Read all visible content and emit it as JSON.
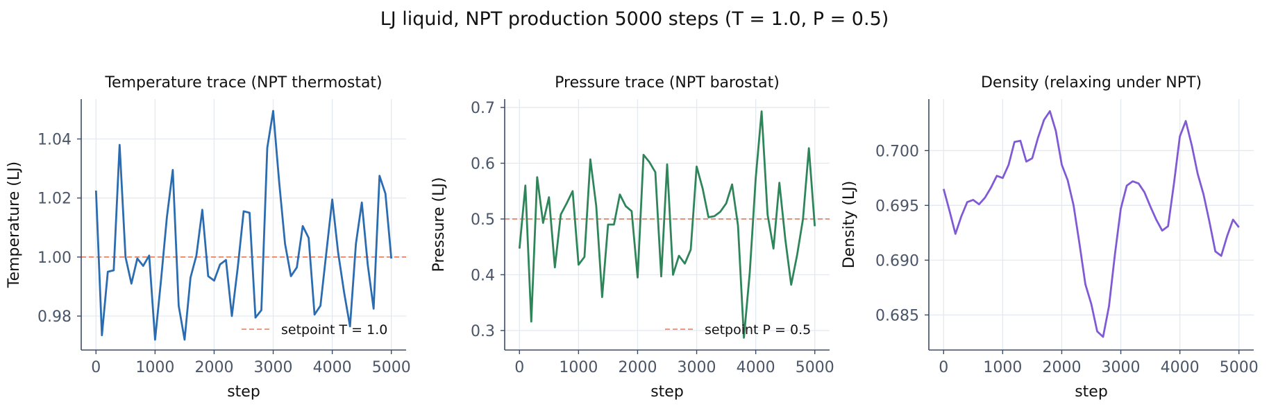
{
  "figure_title": "LJ liquid, NPT production 5000 steps  (T = 1.0, P = 0.5)",
  "colors": {
    "temperature": "#2b6cb0",
    "pressure": "#2f855a",
    "density": "#805ad5",
    "setpoint": "#e07b5a"
  },
  "chart_data": [
    {
      "type": "line",
      "title": "Temperature trace (NPT thermostat)",
      "xlabel": "step",
      "ylabel": "Temperature  (LJ)",
      "xlim": [
        -250,
        5250
      ],
      "ylim": [
        0.9685,
        1.0535
      ],
      "xticks": [
        0,
        1000,
        2000,
        3000,
        4000,
        5000
      ],
      "yticks": [
        0.98,
        1.0,
        1.02,
        1.04
      ],
      "ytick_labels": [
        "0.98",
        "1.00",
        "1.02",
        "1.04"
      ],
      "grid": true,
      "legend_position": "lower right",
      "series": [
        {
          "x": [
            0,
            100,
            200,
            300,
            400,
            500,
            600,
            700,
            800,
            900,
            1000,
            1100,
            1200,
            1300,
            1400,
            1500,
            1600,
            1700,
            1800,
            1900,
            2000,
            2100,
            2200,
            2300,
            2400,
            2500,
            2600,
            2700,
            2800,
            2900,
            3000,
            3100,
            3200,
            3300,
            3400,
            3500,
            3600,
            3700,
            3800,
            3900,
            4000,
            4100,
            4200,
            4300,
            4400,
            4500,
            4600,
            4700,
            4800,
            4900,
            5000
          ],
          "values": [
            1.0225,
            0.9735,
            0.995,
            0.9955,
            1.038,
            1.0,
            0.991,
            0.9995,
            0.997,
            1.0005,
            0.972,
            0.992,
            1.0135,
            1.0295,
            0.9835,
            0.972,
            0.993,
            1.0005,
            1.016,
            0.9935,
            0.992,
            0.9975,
            0.999,
            0.98,
            0.9965,
            1.0155,
            1.015,
            0.9795,
            0.982,
            1.037,
            1.0495,
            1.0255,
            1.0045,
            0.9935,
            0.9965,
            1.0105,
            1.0065,
            0.9805,
            0.9835,
            1.0015,
            1.0195,
            1.0015,
            0.988,
            0.9765,
            1.0045,
            1.0185,
            0.9975,
            0.9825,
            1.0275,
            1.0215,
            0.9995
          ]
        }
      ],
      "hline": {
        "y": 1.0,
        "label": "setpoint T = 1.0"
      }
    },
    {
      "type": "line",
      "title": "Pressure trace (NPT barostat)",
      "xlabel": "step",
      "ylabel": "Pressure  (LJ)",
      "xlim": [
        -250,
        5250
      ],
      "ylim": [
        0.265,
        0.715
      ],
      "xticks": [
        0,
        1000,
        2000,
        3000,
        4000,
        5000
      ],
      "yticks": [
        0.3,
        0.4,
        0.5,
        0.6,
        0.7
      ],
      "ytick_labels": [
        "0.3",
        "0.4",
        "0.5",
        "0.6",
        "0.7"
      ],
      "grid": true,
      "legend_position": "lower right",
      "series": [
        {
          "x": [
            0,
            100,
            200,
            300,
            400,
            500,
            600,
            700,
            800,
            900,
            1000,
            1100,
            1200,
            1300,
            1400,
            1500,
            1600,
            1700,
            1800,
            1900,
            2000,
            2100,
            2200,
            2300,
            2400,
            2500,
            2600,
            2700,
            2800,
            2900,
            3000,
            3100,
            3200,
            3300,
            3400,
            3500,
            3600,
            3700,
            3800,
            3900,
            4000,
            4100,
            4200,
            4300,
            4400,
            4500,
            4600,
            4700,
            4800,
            4900,
            5000
          ],
          "values": [
            0.447,
            0.56,
            0.316,
            0.575,
            0.493,
            0.539,
            0.413,
            0.508,
            0.528,
            0.55,
            0.418,
            0.432,
            0.607,
            0.523,
            0.36,
            0.49,
            0.49,
            0.544,
            0.523,
            0.514,
            0.395,
            0.615,
            0.602,
            0.584,
            0.397,
            0.598,
            0.4,
            0.434,
            0.42,
            0.445,
            0.594,
            0.555,
            0.503,
            0.505,
            0.513,
            0.528,
            0.562,
            0.488,
            0.287,
            0.405,
            0.573,
            0.693,
            0.508,
            0.447,
            0.565,
            0.464,
            0.382,
            0.435,
            0.5,
            0.627,
            0.487
          ]
        }
      ],
      "hline": {
        "y": 0.5,
        "label": "setpoint P = 0.5"
      }
    },
    {
      "type": "line",
      "title": "Density (relaxing under NPT)",
      "xlabel": "step",
      "ylabel": "Density  (LJ)",
      "xlim": [
        -250,
        5250
      ],
      "ylim": [
        0.6818,
        0.7047
      ],
      "xticks": [
        0,
        1000,
        2000,
        3000,
        4000,
        5000
      ],
      "yticks": [
        0.685,
        0.69,
        0.695,
        0.7
      ],
      "ytick_labels": [
        "0.685",
        "0.690",
        "0.695",
        "0.700"
      ],
      "grid": true,
      "series": [
        {
          "x": [
            0,
            100,
            200,
            300,
            400,
            500,
            600,
            700,
            800,
            900,
            1000,
            1100,
            1200,
            1300,
            1400,
            1500,
            1600,
            1700,
            1800,
            1900,
            2000,
            2100,
            2200,
            2300,
            2400,
            2500,
            2600,
            2700,
            2800,
            2900,
            3000,
            3100,
            3200,
            3300,
            3400,
            3500,
            3600,
            3700,
            3800,
            3900,
            4000,
            4100,
            4200,
            4300,
            4400,
            4500,
            4600,
            4700,
            4800,
            4900,
            5000
          ],
          "values": [
            0.6965,
            0.6945,
            0.6924,
            0.694,
            0.6953,
            0.6955,
            0.6951,
            0.6957,
            0.6966,
            0.6977,
            0.6975,
            0.6987,
            0.7008,
            0.7009,
            0.699,
            0.6993,
            0.7012,
            0.7028,
            0.7036,
            0.7018,
            0.6987,
            0.6973,
            0.695,
            0.6915,
            0.6878,
            0.686,
            0.6835,
            0.683,
            0.6858,
            0.6905,
            0.6947,
            0.6968,
            0.6972,
            0.697,
            0.6962,
            0.6949,
            0.6937,
            0.6927,
            0.6931,
            0.697,
            0.7013,
            0.7027,
            0.7005,
            0.6979,
            0.696,
            0.6935,
            0.6908,
            0.6904,
            0.6922,
            0.6937,
            0.693
          ]
        }
      ]
    }
  ]
}
